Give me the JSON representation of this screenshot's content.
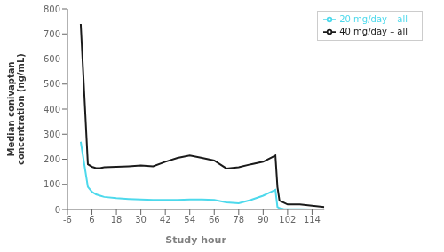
{
  "chart_data": {
    "type": "line",
    "xlabel": "Study hour",
    "ylabel": "Median conivaptan\nconcentration (ng/mL)",
    "x": [
      0.5,
      4,
      6,
      8,
      10,
      12,
      18,
      24,
      30,
      36,
      42,
      48,
      54,
      60,
      66,
      72,
      78,
      84,
      90,
      96,
      97,
      98,
      100,
      102,
      108,
      114,
      120
    ],
    "series": [
      {
        "name": "20 mg/day – all",
        "color": "#4dd9ec",
        "values": [
          270,
          90,
          70,
          60,
          55,
          50,
          45,
          42,
          40,
          38,
          38,
          38,
          40,
          40,
          38,
          28,
          25,
          38,
          55,
          78,
          10,
          5,
          2,
          1,
          1,
          0,
          0
        ]
      },
      {
        "name": "40 mg/day – all",
        "color": "#1a1a1a",
        "values": [
          740,
          180,
          170,
          165,
          165,
          168,
          170,
          172,
          175,
          172,
          190,
          205,
          215,
          205,
          195,
          163,
          168,
          180,
          190,
          215,
          90,
          35,
          28,
          20,
          20,
          15,
          10
        ]
      }
    ],
    "xlim": [
      -6,
      120
    ],
    "xticks": [
      -6,
      6,
      18,
      30,
      42,
      54,
      66,
      78,
      90,
      102,
      114
    ],
    "ylim": [
      0,
      800
    ],
    "yticks": [
      0,
      100,
      200,
      300,
      400,
      500,
      600,
      700,
      800
    ],
    "grid": false,
    "legend": "upper right"
  }
}
